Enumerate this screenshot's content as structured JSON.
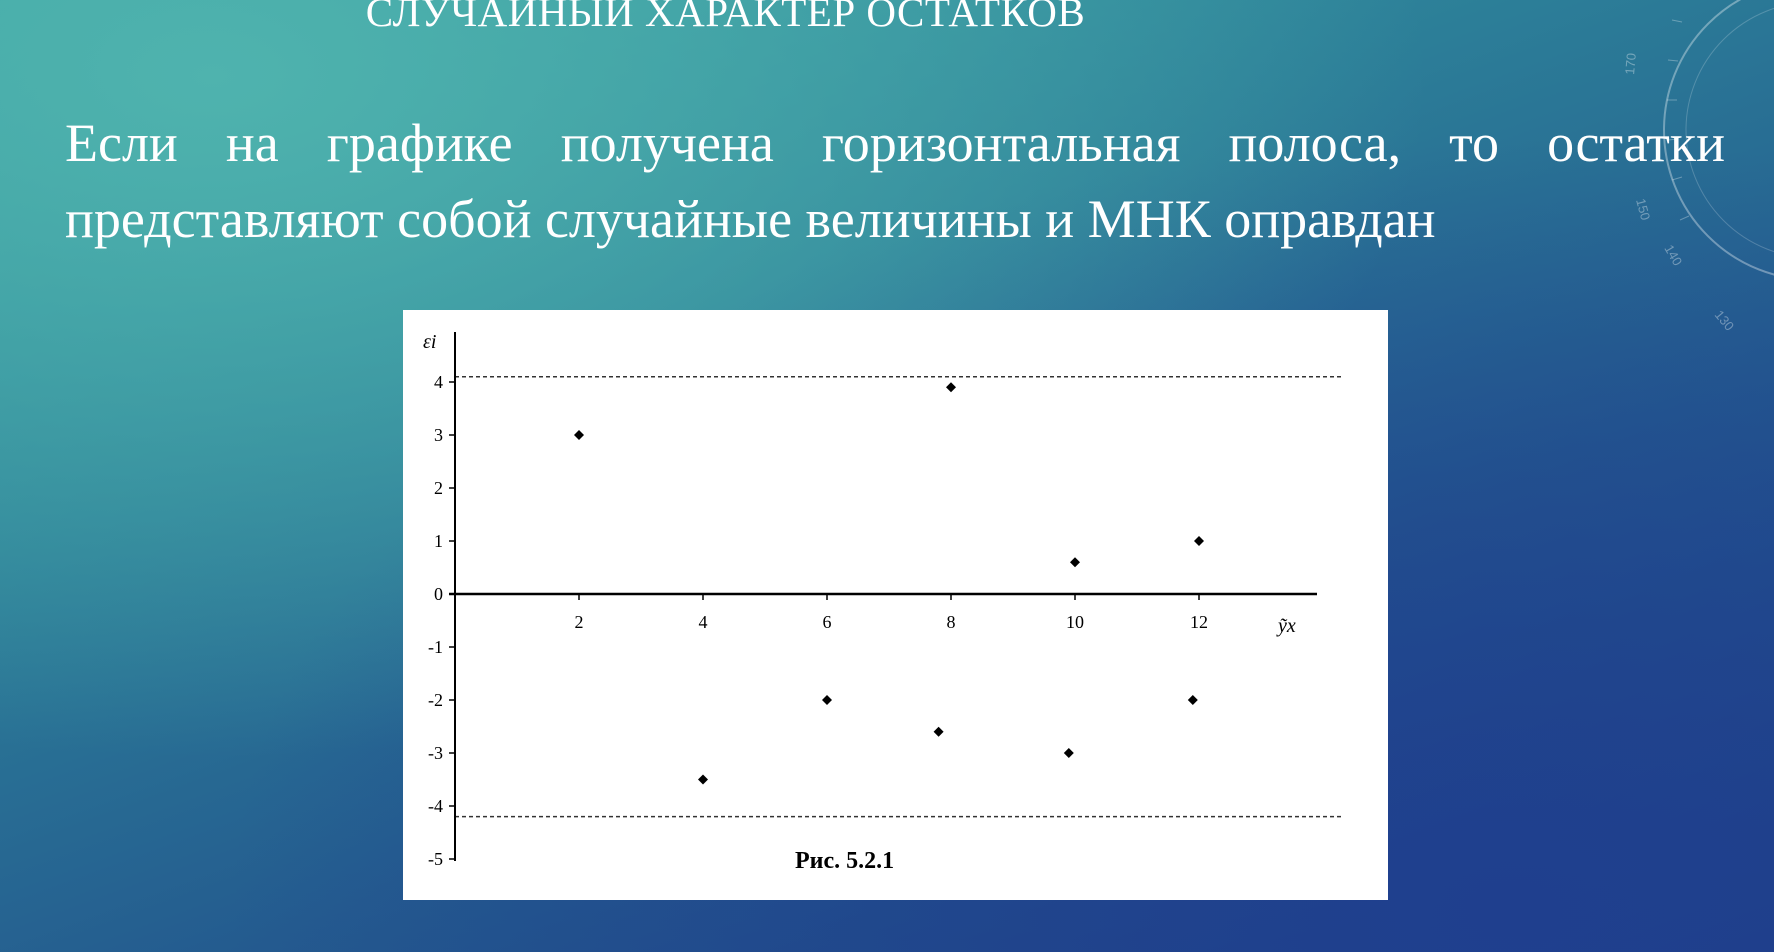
{
  "slide": {
    "title": "СЛУЧАЙНЫЙ ХАРАКТЕР ОСТАТКОВ",
    "body": "Если на графике получена горизонтальная полоса, то остатки представляют собой случайные величины и МНК оправдан"
  },
  "decor": {
    "dial_labels": [
      "170",
      "150",
      "140",
      "130"
    ]
  },
  "chart_data": {
    "type": "scatter",
    "caption": "Рис. 5.2.1",
    "ylabel": "εi",
    "xlabel": "ỹx",
    "x_ticks": [
      2,
      4,
      6,
      8,
      10,
      12
    ],
    "y_ticks": [
      4,
      3,
      2,
      1,
      0,
      -1,
      -2,
      -3,
      -4,
      -5
    ],
    "ylim": [
      -5,
      4.5
    ],
    "xlim": [
      0,
      14
    ],
    "bands": [
      4.1,
      -4.2
    ],
    "grid": false,
    "points": [
      {
        "x": 2,
        "y": 3
      },
      {
        "x": 4,
        "y": -3.5
      },
      {
        "x": 6,
        "y": -2
      },
      {
        "x": 7.8,
        "y": -2.6
      },
      {
        "x": 8,
        "y": 3.9
      },
      {
        "x": 9.9,
        "y": -3
      },
      {
        "x": 10,
        "y": 0.6
      },
      {
        "x": 11.9,
        "y": -2
      },
      {
        "x": 12,
        "y": 1
      }
    ],
    "colors": {
      "points": "#000000",
      "axes": "#000000",
      "bands": "#333333"
    }
  }
}
